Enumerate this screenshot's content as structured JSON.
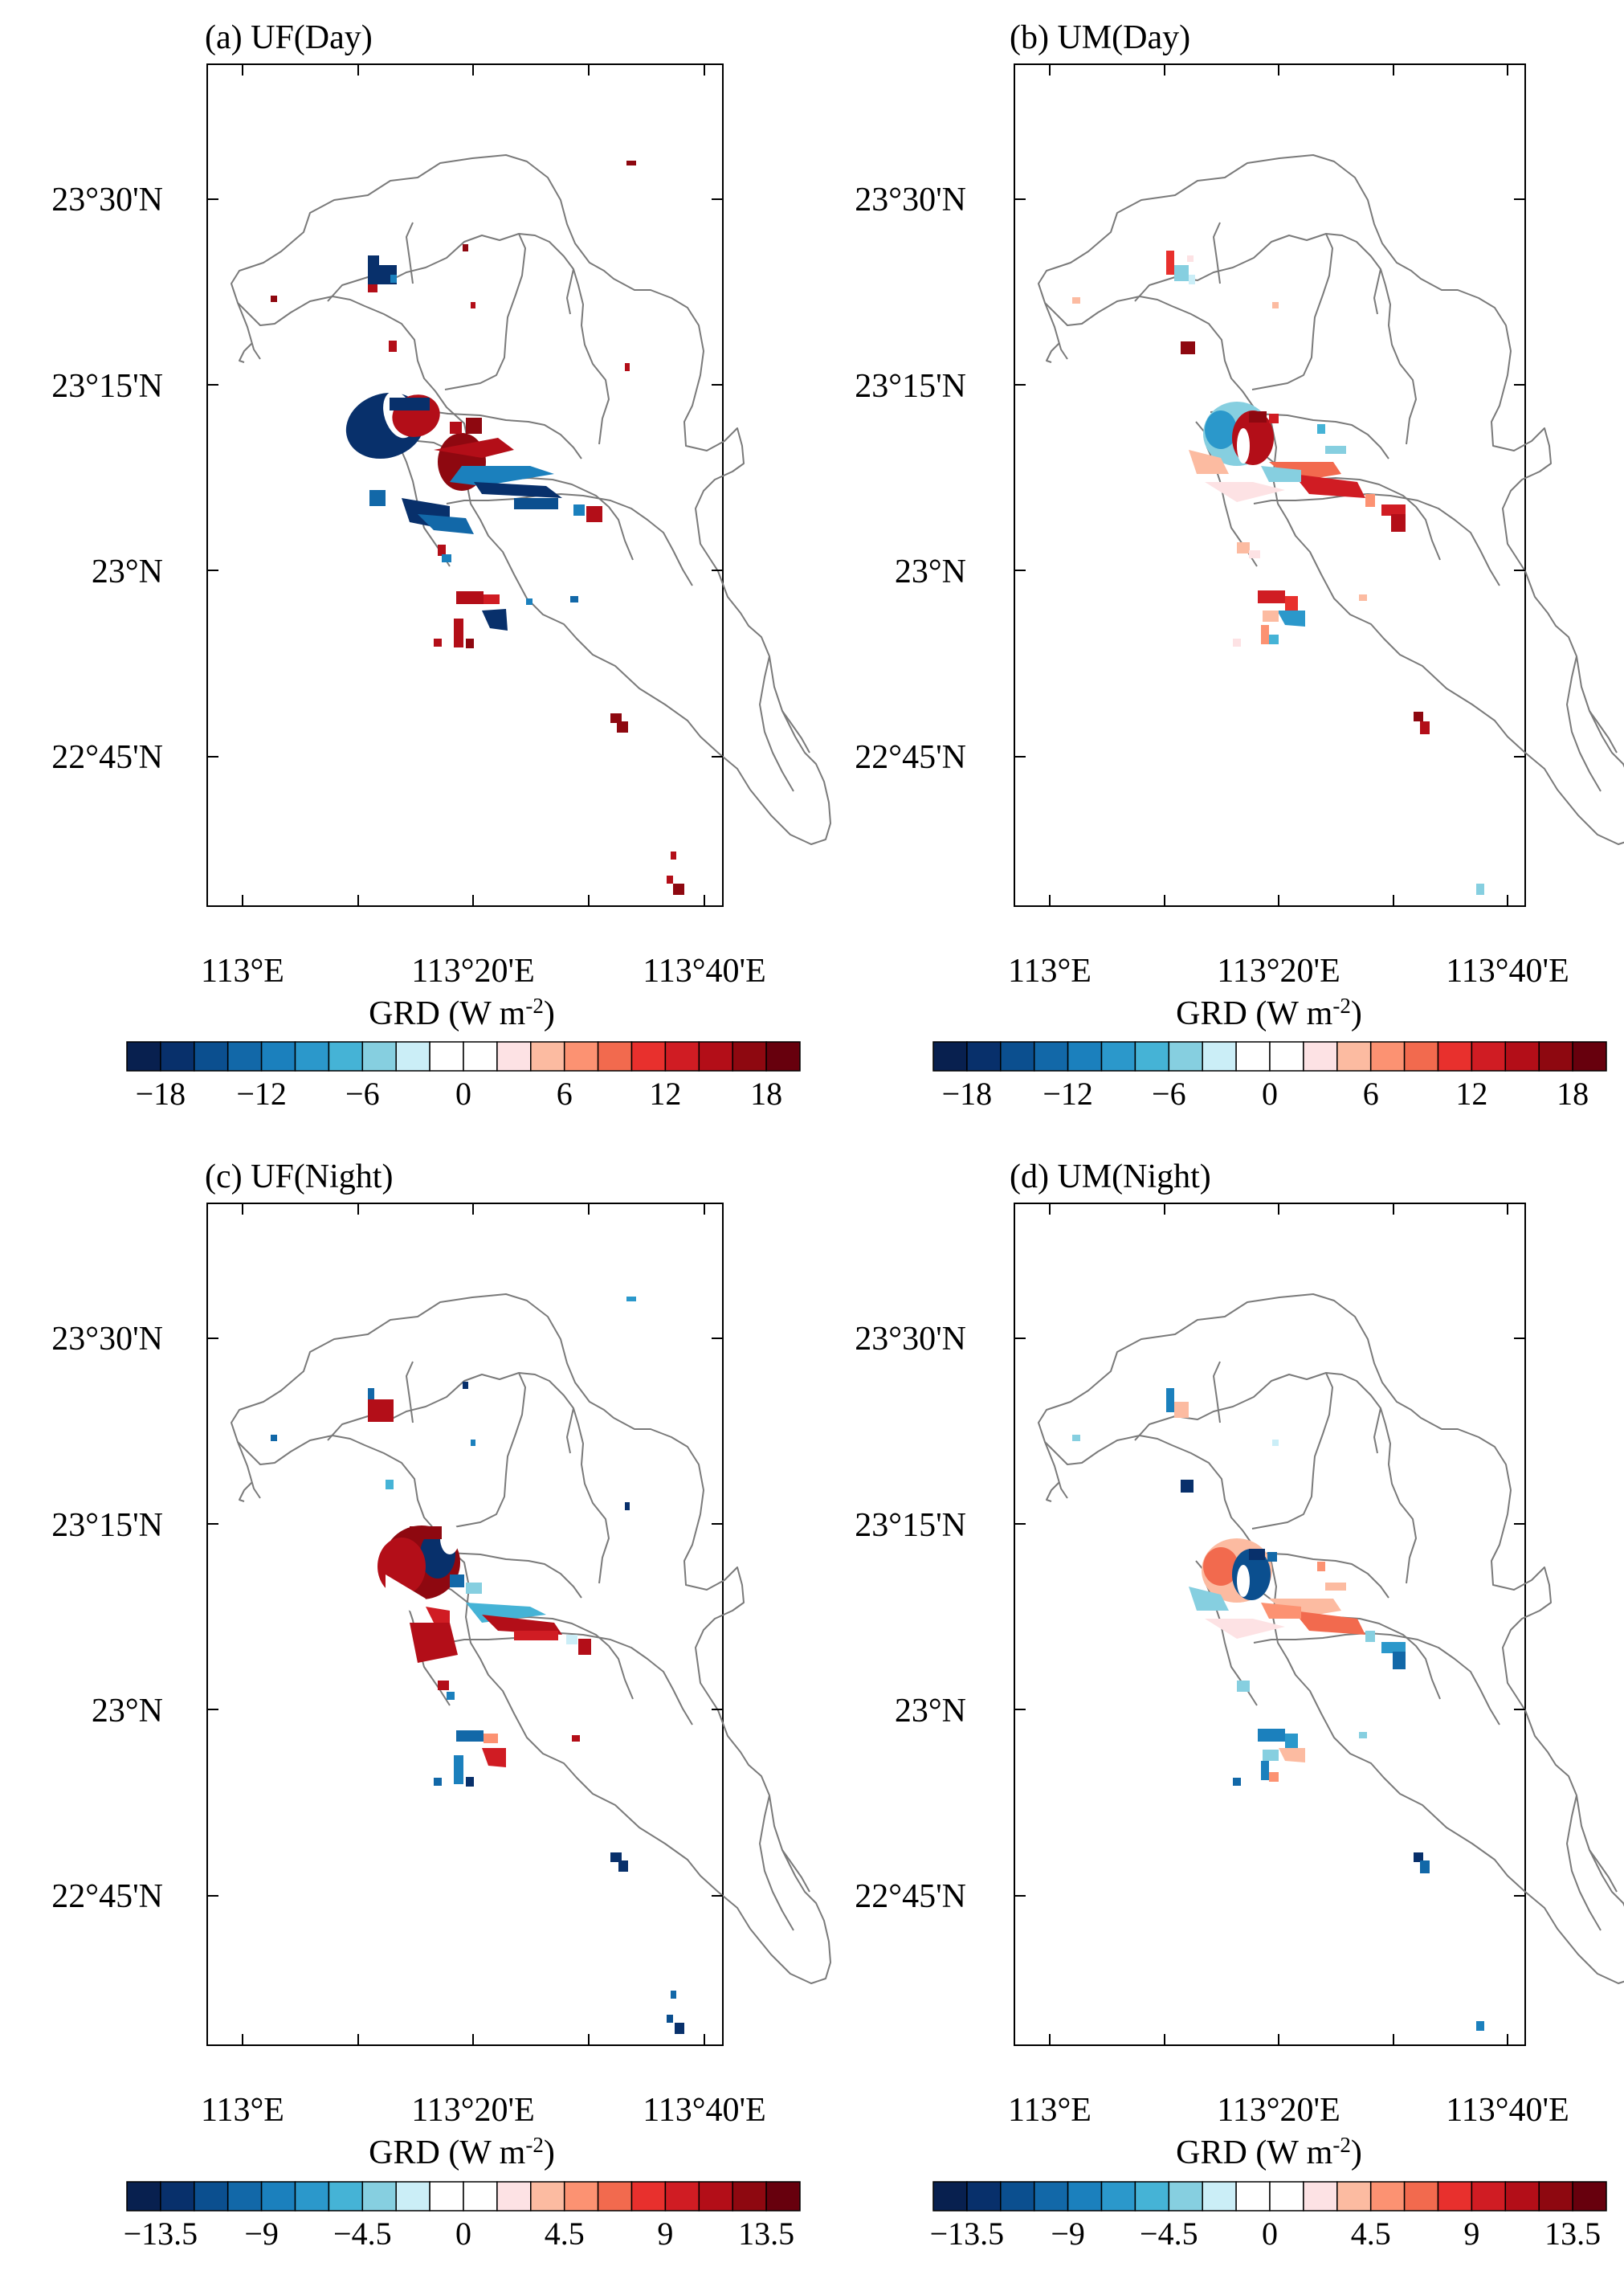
{
  "panels": [
    {
      "id": "a",
      "title": "(a) UF(Day)",
      "pattern": "day-uf"
    },
    {
      "id": "b",
      "title": "(b) UM(Day)",
      "pattern": "day-um"
    },
    {
      "id": "c",
      "title": "(c) UF(Night)",
      "pattern": "night-uf"
    },
    {
      "id": "d",
      "title": "(d) UM(Night)",
      "pattern": "night-um"
    }
  ],
  "axes": {
    "lat_ticks": [
      "23°30'N",
      "23°15'N",
      "23°N",
      "22°45'N"
    ],
    "lon_ticks": [
      "113°E",
      "113°20'E",
      "113°40'E"
    ]
  },
  "colorbar": {
    "title_main": "GRD (W m",
    "title_exp": "-2",
    "title_close": ")",
    "day_labels": [
      "−18",
      "−12",
      "−6",
      "0",
      "6",
      "12",
      "18"
    ],
    "night_labels": [
      "−13.5",
      "−9",
      "−4.5",
      "0",
      "4.5",
      "9",
      "13.5"
    ],
    "colors": [
      "#08204f",
      "#08306b",
      "#0b4f8f",
      "#1268a8",
      "#1b80bd",
      "#2b98cb",
      "#45b3d6",
      "#86cfe0",
      "#cbeef7",
      "#ffffff",
      "#ffffff",
      "#fde2e4",
      "#fcbba1",
      "#fc9272",
      "#f26a4e",
      "#e8302d",
      "#d01c23",
      "#b30e18",
      "#8e0810",
      "#67000d"
    ]
  }
}
